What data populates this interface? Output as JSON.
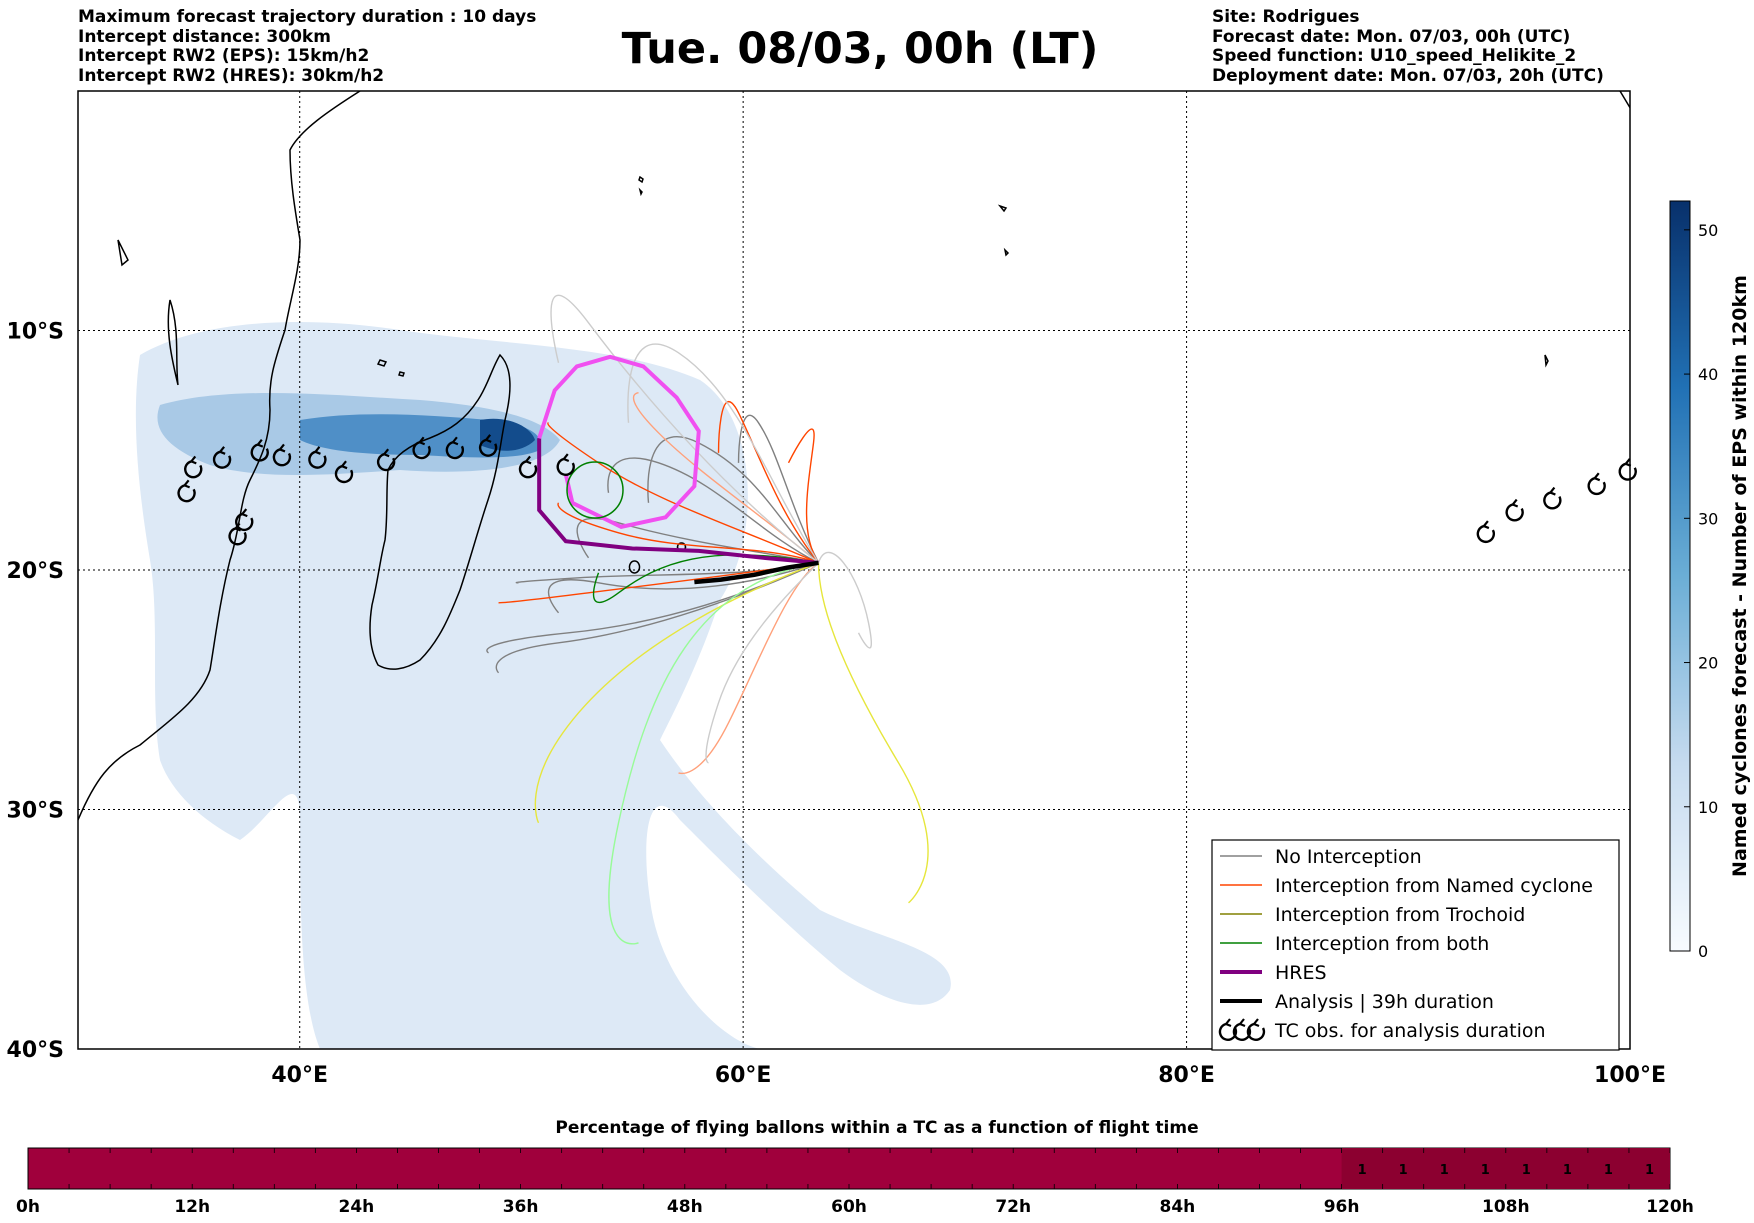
{
  "header_left": [
    "Maximum forecast trajectory duration : 10 days",
    "Intercept distance: 300km",
    "Intercept RW2 (EPS):  15km/h2",
    "Intercept RW2 (HRES): 30km/h2"
  ],
  "title": "Tue. 08/03, 00h (LT)",
  "header_right": [
    "Site: Rodrigues",
    "Forecast date: Mon. 07/03, 00h (UTC)",
    "Speed function: U10_speed_Helikite_2",
    "Deployment date: Mon. 07/03, 20h (UTC)"
  ],
  "map": {
    "lon_labels": [
      "40°E",
      "60°E",
      "80°E",
      "100°E"
    ],
    "lat_labels": [
      "10°S",
      "20°S",
      "30°S",
      "40°S"
    ],
    "lon_values": [
      40,
      60,
      80,
      100
    ],
    "lat_values": [
      -10,
      -20,
      -30,
      -40
    ],
    "extent": {
      "lon_min": 30,
      "lon_max": 100,
      "lat_min": -40,
      "lat_max": 0
    },
    "grid": "dotted"
  },
  "colorbar": {
    "title": "Named cyclones forecast - Number of EPS within 120km",
    "ticks": [
      "0",
      "10",
      "20",
      "30",
      "40",
      "50"
    ],
    "range": [
      0,
      52
    ],
    "colors": [
      "#f7fbff",
      "#c6dbef",
      "#6baed6",
      "#2171b5",
      "#08306b"
    ]
  },
  "legend": {
    "items": [
      {
        "label": "No Interception",
        "color": "#808080",
        "style": "line-thin"
      },
      {
        "label": "Interception from Named cyclone",
        "color": "#ff4500",
        "style": "line-thin"
      },
      {
        "label": "Interception from Trochoid",
        "color": "#808000",
        "style": "line-thin"
      },
      {
        "label": "Interception from both",
        "color": "#008000",
        "style": "line-thin"
      },
      {
        "label": "HRES",
        "color": "#800080",
        "style": "line-thick"
      },
      {
        "label": "Analysis | 39h duration",
        "color": "#000000",
        "style": "line-thick"
      },
      {
        "label": "TC obs. for analysis duration",
        "color": "#000000",
        "style": "tc-symbol"
      }
    ]
  },
  "flight_bar": {
    "title": "Percentage of flying ballons within a TC as a function of flight time",
    "hour_labels": [
      "0h",
      "12h",
      "24h",
      "36h",
      "48h",
      "60h",
      "72h",
      "84h",
      "96h",
      "108h",
      "120h"
    ],
    "bar_color": "#a0003c",
    "cell_values": [
      "1",
      "1",
      "1",
      "1",
      "1",
      "1",
      "1",
      "1"
    ]
  },
  "tc_obs_west": [
    [
      34.9,
      -16.8
    ],
    [
      35.2,
      -15.8
    ],
    [
      36.5,
      -15.4
    ],
    [
      38.2,
      -15.1
    ],
    [
      39.2,
      -15.3
    ],
    [
      40.8,
      -15.4
    ],
    [
      42.0,
      -16.0
    ],
    [
      43.9,
      -15.5
    ],
    [
      45.5,
      -15.0
    ],
    [
      47.0,
      -15.0
    ],
    [
      48.5,
      -14.9
    ],
    [
      50.3,
      -15.8
    ],
    [
      52.0,
      -15.7
    ],
    [
      37.5,
      -18.0
    ],
    [
      37.2,
      -18.6
    ]
  ],
  "tc_obs_east": [
    [
      93.5,
      -18.5
    ],
    [
      94.8,
      -17.6
    ],
    [
      96.5,
      -17.1
    ],
    [
      98.5,
      -16.5
    ],
    [
      99.9,
      -15.9
    ]
  ],
  "analysis_track": [
    [
      63.4,
      -19.7
    ],
    [
      62.0,
      -19.9
    ],
    [
      60.5,
      -20.2
    ],
    [
      59.0,
      -20.4
    ],
    [
      57.8,
      -20.5
    ]
  ],
  "hres_track": [
    [
      63.4,
      -19.7
    ],
    [
      61.0,
      -19.5
    ],
    [
      58.0,
      -19.2
    ],
    [
      55.0,
      -19.1
    ],
    [
      52.0,
      -18.8
    ],
    [
      50.8,
      -17.5
    ],
    [
      50.8,
      -14.5
    ],
    [
      51.5,
      -12.5
    ],
    [
      52.5,
      -11.5
    ],
    [
      54.0,
      -11.1
    ],
    [
      55.5,
      -11.5
    ],
    [
      57.0,
      -12.8
    ],
    [
      58.0,
      -14.2
    ],
    [
      57.8,
      -16.5
    ],
    [
      56.5,
      -17.8
    ],
    [
      54.5,
      -18.2
    ],
    [
      52.3,
      -17.2
    ],
    [
      52.0,
      -16.0
    ]
  ]
}
